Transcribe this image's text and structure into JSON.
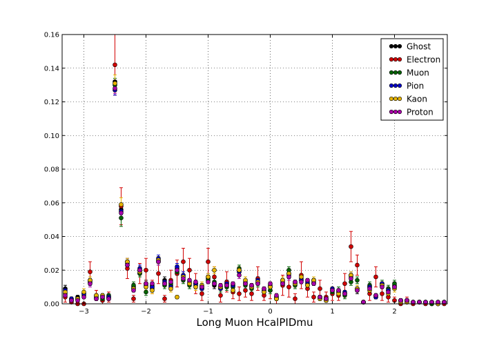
{
  "chart_data": {
    "type": "scatter",
    "title": "",
    "xlabel": "Long Muon HcalPIDmu",
    "ylabel": "",
    "xlim": [
      -3.35,
      2.85
    ],
    "ylim": [
      0.0,
      0.16
    ],
    "grid": true,
    "legend_position": "top-right",
    "x_ticks": [
      {
        "value": -3,
        "label": "−3"
      },
      {
        "value": -2,
        "label": "−2"
      },
      {
        "value": -1,
        "label": "−1"
      },
      {
        "value": 0,
        "label": "0"
      },
      {
        "value": 1,
        "label": "1"
      },
      {
        "value": 2,
        "label": "2"
      }
    ],
    "y_ticks": [
      {
        "value": 0.0,
        "label": "0.00"
      },
      {
        "value": 0.02,
        "label": "0.02"
      },
      {
        "value": 0.04,
        "label": "0.04"
      },
      {
        "value": 0.06,
        "label": "0.06"
      },
      {
        "value": 0.08,
        "label": "0.08"
      },
      {
        "value": 0.1,
        "label": "0.10"
      },
      {
        "value": 0.12,
        "label": "0.12"
      },
      {
        "value": 0.14,
        "label": "0.14"
      },
      {
        "value": 0.16,
        "label": "0.16"
      }
    ],
    "x": [
      -3.3,
      -3.2,
      -3.1,
      -3.0,
      -2.9,
      -2.8,
      -2.7,
      -2.6,
      -2.5,
      -2.4,
      -2.3,
      -2.2,
      -2.1,
      -2.0,
      -1.9,
      -1.8,
      -1.7,
      -1.6,
      -1.5,
      -1.4,
      -1.3,
      -1.2,
      -1.1,
      -1.0,
      -0.9,
      -0.8,
      -0.7,
      -0.6,
      -0.5,
      -0.4,
      -0.3,
      -0.2,
      -0.1,
      0.0,
      0.1,
      0.2,
      0.3,
      0.4,
      0.5,
      0.6,
      0.7,
      0.8,
      0.9,
      1.0,
      1.1,
      1.2,
      1.3,
      1.4,
      1.5,
      1.6,
      1.7,
      1.8,
      1.9,
      2.0,
      2.1,
      2.2,
      2.3,
      2.4,
      2.5,
      2.6,
      2.7,
      2.8
    ],
    "series": [
      {
        "name": "Ghost",
        "color": "#000000",
        "values": [
          0.009,
          0.003,
          0.004,
          0.006,
          0.014,
          0.004,
          0.005,
          0.004,
          0.132,
          0.056,
          0.024,
          0.01,
          0.02,
          0.012,
          0.011,
          0.026,
          0.014,
          0.011,
          0.021,
          0.016,
          0.013,
          0.011,
          0.009,
          0.015,
          0.011,
          0.01,
          0.012,
          0.011,
          0.019,
          0.012,
          0.01,
          0.013,
          0.008,
          0.01,
          0.004,
          0.013,
          0.018,
          0.012,
          0.015,
          0.012,
          0.013,
          0.004,
          0.003,
          0.008,
          0.007,
          0.006,
          0.016,
          0.008,
          0.001,
          0.01,
          0.004,
          0.011,
          0.008,
          0.011,
          0.002,
          0.002,
          0.001,
          0.001,
          0.001,
          0.001,
          0.001,
          0.001
        ],
        "errors": [
          0.002,
          0.001,
          0.001,
          0.001,
          0.002,
          0.001,
          0.001,
          0.001,
          0.004,
          0.003,
          0.002,
          0.002,
          0.002,
          0.002,
          0.002,
          0.002,
          0.002,
          0.002,
          0.002,
          0.002,
          0.002,
          0.002,
          0.002,
          0.002,
          0.002,
          0.002,
          0.002,
          0.002,
          0.002,
          0.002,
          0.002,
          0.002,
          0.002,
          0.002,
          0.001,
          0.002,
          0.002,
          0.002,
          0.002,
          0.002,
          0.002,
          0.001,
          0.001,
          0.002,
          0.002,
          0.002,
          0.002,
          0.002,
          0.0005,
          0.002,
          0.001,
          0.002,
          0.002,
          0.002,
          0.001,
          0.001,
          0.0005,
          0.0005,
          0.0005,
          0.0005,
          0.0005,
          0.0005
        ]
      },
      {
        "name": "Electron",
        "color": "#d20000",
        "values": [
          0.004,
          0.001,
          0.0,
          0.0,
          0.019,
          0.005,
          0.002,
          0.004,
          0.142,
          0.058,
          0.021,
          0.003,
          0.018,
          0.02,
          0.01,
          0.018,
          0.003,
          0.014,
          0.018,
          0.025,
          0.02,
          0.012,
          0.006,
          0.025,
          0.016,
          0.005,
          0.013,
          0.007,
          0.006,
          0.008,
          0.006,
          0.015,
          0.005,
          0.008,
          0.003,
          0.011,
          0.01,
          0.003,
          0.017,
          0.009,
          0.004,
          0.009,
          0.004,
          0.006,
          0.005,
          0.012,
          0.034,
          0.023,
          0.001,
          0.006,
          0.016,
          0.006,
          0.004,
          0.002,
          0.0,
          0.002,
          0.0,
          0.001,
          0.0,
          0.0,
          0.0,
          0.0
        ],
        "errors": [
          0.003,
          0.001,
          0.0005,
          0.0005,
          0.006,
          0.003,
          0.002,
          0.003,
          0.018,
          0.011,
          0.006,
          0.002,
          0.006,
          0.007,
          0.004,
          0.006,
          0.002,
          0.006,
          0.008,
          0.008,
          0.007,
          0.006,
          0.004,
          0.008,
          0.006,
          0.004,
          0.006,
          0.004,
          0.004,
          0.004,
          0.004,
          0.007,
          0.003,
          0.005,
          0.003,
          0.006,
          0.006,
          0.003,
          0.008,
          0.005,
          0.003,
          0.005,
          0.003,
          0.004,
          0.003,
          0.006,
          0.009,
          0.006,
          0.001,
          0.004,
          0.006,
          0.004,
          0.003,
          0.002,
          0.0005,
          0.002,
          0.0005,
          0.001,
          0.0005,
          0.0005,
          0.0005,
          0.0005
        ]
      },
      {
        "name": "Muon",
        "color": "#006400",
        "values": [
          0.006,
          0.002,
          0.003,
          0.005,
          0.013,
          0.003,
          0.003,
          0.005,
          0.13,
          0.051,
          0.023,
          0.011,
          0.018,
          0.007,
          0.009,
          0.025,
          0.011,
          0.012,
          0.019,
          0.014,
          0.011,
          0.012,
          0.01,
          0.014,
          0.013,
          0.009,
          0.01,
          0.01,
          0.021,
          0.011,
          0.009,
          0.012,
          0.007,
          0.008,
          0.003,
          0.012,
          0.02,
          0.011,
          0.014,
          0.011,
          0.014,
          0.003,
          0.002,
          0.007,
          0.008,
          0.005,
          0.013,
          0.014,
          0.001,
          0.011,
          0.005,
          0.012,
          0.009,
          0.012,
          0.002,
          0.001,
          0.001,
          0.001,
          0.001,
          0.0,
          0.0,
          0.001
        ],
        "errors": [
          0.001,
          0.001,
          0.001,
          0.001,
          0.002,
          0.001,
          0.001,
          0.001,
          0.004,
          0.005,
          0.002,
          0.002,
          0.002,
          0.002,
          0.002,
          0.002,
          0.002,
          0.002,
          0.002,
          0.002,
          0.002,
          0.002,
          0.002,
          0.002,
          0.002,
          0.002,
          0.002,
          0.002,
          0.002,
          0.002,
          0.002,
          0.002,
          0.002,
          0.002,
          0.001,
          0.002,
          0.002,
          0.002,
          0.002,
          0.002,
          0.002,
          0.001,
          0.001,
          0.002,
          0.002,
          0.002,
          0.002,
          0.002,
          0.0005,
          0.002,
          0.001,
          0.002,
          0.002,
          0.002,
          0.001,
          0.001,
          0.0005,
          0.0005,
          0.0005,
          0.0005,
          0.0005,
          0.0005
        ]
      },
      {
        "name": "Pion",
        "color": "#0000c8",
        "values": [
          0.008,
          0.003,
          0.003,
          0.006,
          0.013,
          0.004,
          0.004,
          0.004,
          0.127,
          0.055,
          0.025,
          0.009,
          0.021,
          0.011,
          0.01,
          0.027,
          0.013,
          0.01,
          0.022,
          0.017,
          0.012,
          0.012,
          0.009,
          0.016,
          0.012,
          0.009,
          0.012,
          0.011,
          0.019,
          0.013,
          0.011,
          0.014,
          0.008,
          0.011,
          0.004,
          0.014,
          0.017,
          0.013,
          0.014,
          0.013,
          0.012,
          0.004,
          0.003,
          0.009,
          0.007,
          0.007,
          0.017,
          0.009,
          0.001,
          0.01,
          0.004,
          0.012,
          0.008,
          0.01,
          0.002,
          0.002,
          0.001,
          0.001,
          0.001,
          0.001,
          0.001,
          0.001
        ],
        "errors": [
          0.001,
          0.001,
          0.001,
          0.001,
          0.002,
          0.001,
          0.001,
          0.001,
          0.003,
          0.002,
          0.002,
          0.001,
          0.002,
          0.001,
          0.001,
          0.002,
          0.001,
          0.001,
          0.002,
          0.002,
          0.001,
          0.001,
          0.001,
          0.002,
          0.001,
          0.001,
          0.001,
          0.001,
          0.002,
          0.001,
          0.001,
          0.002,
          0.001,
          0.001,
          0.001,
          0.002,
          0.002,
          0.001,
          0.002,
          0.001,
          0.001,
          0.001,
          0.001,
          0.001,
          0.001,
          0.001,
          0.002,
          0.001,
          0.0005,
          0.001,
          0.001,
          0.001,
          0.001,
          0.001,
          0.001,
          0.001,
          0.0005,
          0.0005,
          0.0005,
          0.0005,
          0.0005,
          0.0005
        ]
      },
      {
        "name": "Kaon",
        "color": "#e6b400",
        "values": [
          0.007,
          0.002,
          0.003,
          0.007,
          0.014,
          0.005,
          0.005,
          0.003,
          0.131,
          0.059,
          0.025,
          0.009,
          0.019,
          0.01,
          0.008,
          0.026,
          0.012,
          0.009,
          0.004,
          0.016,
          0.012,
          0.01,
          0.011,
          0.016,
          0.02,
          0.01,
          0.011,
          0.008,
          0.02,
          0.014,
          0.01,
          0.013,
          0.007,
          0.01,
          0.003,
          0.014,
          0.018,
          0.012,
          0.016,
          0.011,
          0.014,
          0.003,
          0.002,
          0.008,
          0.006,
          0.006,
          0.017,
          0.009,
          0.001,
          0.008,
          0.005,
          0.011,
          0.006,
          0.009,
          0.001,
          0.001,
          0.001,
          0.001,
          0.001,
          0.001,
          0.0,
          0.001
        ],
        "errors": [
          0.002,
          0.001,
          0.001,
          0.002,
          0.002,
          0.001,
          0.001,
          0.001,
          0.005,
          0.004,
          0.002,
          0.002,
          0.002,
          0.002,
          0.002,
          0.002,
          0.002,
          0.002,
          0.001,
          0.002,
          0.002,
          0.002,
          0.002,
          0.002,
          0.002,
          0.002,
          0.002,
          0.002,
          0.002,
          0.002,
          0.002,
          0.002,
          0.002,
          0.002,
          0.001,
          0.002,
          0.002,
          0.002,
          0.002,
          0.002,
          0.002,
          0.001,
          0.001,
          0.002,
          0.002,
          0.002,
          0.002,
          0.002,
          0.0005,
          0.002,
          0.001,
          0.002,
          0.002,
          0.002,
          0.001,
          0.001,
          0.0005,
          0.0005,
          0.0005,
          0.0005,
          0.0005,
          0.0005
        ]
      },
      {
        "name": "Proton",
        "color": "#aa00aa",
        "values": [
          0.005,
          0.002,
          0.002,
          0.004,
          0.012,
          0.003,
          0.004,
          0.003,
          0.128,
          0.054,
          0.023,
          0.008,
          0.02,
          0.012,
          0.012,
          0.025,
          0.012,
          0.013,
          0.02,
          0.015,
          0.014,
          0.013,
          0.01,
          0.013,
          0.012,
          0.011,
          0.011,
          0.012,
          0.017,
          0.012,
          0.011,
          0.012,
          0.009,
          0.012,
          0.005,
          0.012,
          0.016,
          0.013,
          0.013,
          0.014,
          0.012,
          0.004,
          0.003,
          0.008,
          0.008,
          0.006,
          0.015,
          0.008,
          0.001,
          0.009,
          0.005,
          0.01,
          0.007,
          0.01,
          0.002,
          0.002,
          0.001,
          0.001,
          0.001,
          0.001,
          0.001,
          0.001
        ],
        "errors": [
          0.001,
          0.001,
          0.001,
          0.001,
          0.002,
          0.001,
          0.001,
          0.001,
          0.003,
          0.003,
          0.002,
          0.001,
          0.002,
          0.001,
          0.001,
          0.002,
          0.001,
          0.001,
          0.002,
          0.002,
          0.001,
          0.001,
          0.001,
          0.001,
          0.001,
          0.001,
          0.001,
          0.001,
          0.002,
          0.001,
          0.001,
          0.001,
          0.001,
          0.001,
          0.001,
          0.001,
          0.002,
          0.001,
          0.001,
          0.001,
          0.001,
          0.001,
          0.001,
          0.001,
          0.001,
          0.001,
          0.002,
          0.001,
          0.0005,
          0.001,
          0.001,
          0.001,
          0.001,
          0.001,
          0.001,
          0.001,
          0.0005,
          0.0005,
          0.0005,
          0.0005,
          0.0005,
          0.0005
        ]
      }
    ]
  }
}
